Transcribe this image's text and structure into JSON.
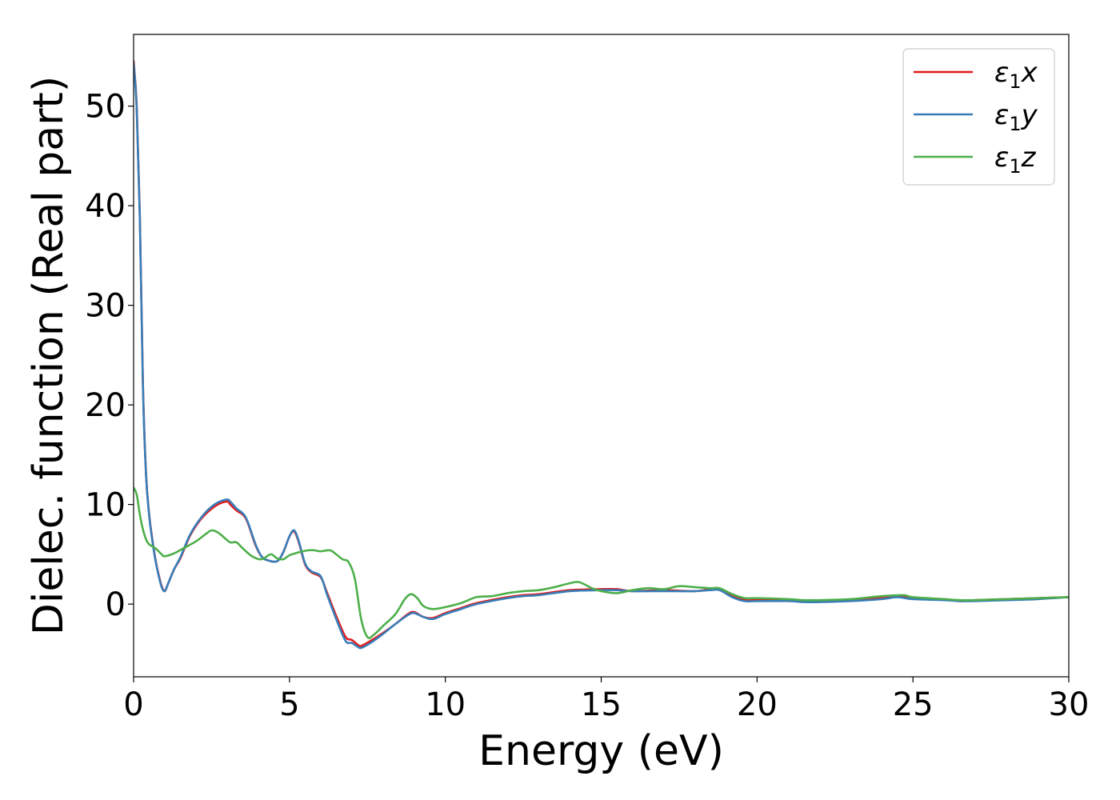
{
  "chart_data": {
    "type": "line",
    "xlabel": "Energy (eV)",
    "ylabel": "Dielec. function (Real part)",
    "xlim": [
      0,
      30
    ],
    "ylim": [
      -7.3,
      57.2
    ],
    "xticks": [
      0,
      5,
      10,
      15,
      20,
      25,
      30
    ],
    "yticks": [
      0,
      10,
      20,
      30,
      40,
      50
    ],
    "grid": false,
    "legend_position": "top-right",
    "series": [
      {
        "name": "ε1x",
        "legend_symbol": "ε",
        "legend_sub": "1",
        "legend_suffix": "x",
        "color": "#e41a1c",
        "x": [
          0,
          0.1,
          0.2,
          0.3,
          0.4,
          0.5,
          0.6,
          0.7,
          0.8,
          0.9,
          1.0,
          1.1,
          1.3,
          1.5,
          1.8,
          2.1,
          2.4,
          2.7,
          3.0,
          3.1,
          3.3,
          3.6,
          3.9,
          4.1,
          4.3,
          4.6,
          4.8,
          5.0,
          5.15,
          5.3,
          5.5,
          5.7,
          6.0,
          6.2,
          6.5,
          6.8,
          7.0,
          7.2,
          7.3,
          7.6,
          8.0,
          8.4,
          8.8,
          9.0,
          9.3,
          9.6,
          10.0,
          10.5,
          11.0,
          12.0,
          12.5,
          13.0,
          14.0,
          15.0,
          15.5,
          16.0,
          17.0,
          18.0,
          18.5,
          18.8,
          19.2,
          19.6,
          20.0,
          21.0,
          21.5,
          22.0,
          23.0,
          24.0,
          24.5,
          25.0,
          26.0,
          26.5,
          27.0,
          28.0,
          29.0,
          30.0
        ],
        "y": [
          54.5,
          50.0,
          39.0,
          22.0,
          13.0,
          9.0,
          6.5,
          4.5,
          3.0,
          1.8,
          1.3,
          2.0,
          3.5,
          4.6,
          6.8,
          8.3,
          9.3,
          10.0,
          10.3,
          10.0,
          9.4,
          8.6,
          6.0,
          4.8,
          4.4,
          4.3,
          5.2,
          6.8,
          7.3,
          6.2,
          4.0,
          3.2,
          2.7,
          1.2,
          -1.2,
          -3.3,
          -3.6,
          -4.1,
          -4.2,
          -3.7,
          -2.9,
          -2.0,
          -1.0,
          -0.8,
          -1.3,
          -1.4,
          -0.9,
          -0.4,
          0.1,
          0.7,
          0.9,
          1.0,
          1.4,
          1.5,
          1.5,
          1.3,
          1.4,
          1.3,
          1.5,
          1.4,
          0.8,
          0.4,
          0.4,
          0.4,
          0.3,
          0.3,
          0.4,
          0.6,
          0.8,
          0.6,
          0.5,
          0.3,
          0.4,
          0.5,
          0.6,
          0.7
        ]
      },
      {
        "name": "ε1y",
        "legend_symbol": "ε",
        "legend_sub": "1",
        "legend_suffix": "y",
        "color": "#377eb8",
        "x": [
          0,
          0.1,
          0.2,
          0.3,
          0.4,
          0.5,
          0.6,
          0.7,
          0.8,
          0.9,
          1.0,
          1.1,
          1.3,
          1.5,
          1.8,
          2.1,
          2.4,
          2.7,
          3.0,
          3.1,
          3.3,
          3.6,
          3.9,
          4.1,
          4.3,
          4.6,
          4.8,
          5.0,
          5.15,
          5.3,
          5.5,
          5.7,
          6.0,
          6.2,
          6.5,
          6.8,
          7.0,
          7.2,
          7.3,
          7.6,
          8.0,
          8.4,
          8.8,
          9.0,
          9.3,
          9.6,
          10.0,
          10.5,
          11.0,
          12.0,
          12.5,
          13.0,
          14.0,
          15.0,
          15.5,
          16.0,
          17.0,
          18.0,
          18.5,
          18.8,
          19.2,
          19.6,
          20.0,
          21.0,
          21.5,
          22.0,
          23.0,
          24.0,
          24.5,
          25.0,
          26.0,
          26.5,
          27.0,
          28.0,
          29.0,
          30.0
        ],
        "y": [
          54.3,
          49.7,
          38.8,
          21.8,
          12.9,
          8.9,
          6.4,
          4.4,
          2.9,
          1.7,
          1.3,
          2.0,
          3.5,
          4.7,
          6.9,
          8.4,
          9.5,
          10.2,
          10.5,
          10.3,
          9.6,
          8.7,
          6.1,
          4.8,
          4.4,
          4.3,
          5.2,
          6.8,
          7.4,
          6.3,
          4.1,
          3.3,
          2.8,
          1.0,
          -1.5,
          -3.7,
          -3.9,
          -4.3,
          -4.4,
          -3.9,
          -3.0,
          -2.0,
          -1.1,
          -0.9,
          -1.3,
          -1.5,
          -1.0,
          -0.5,
          0.0,
          0.6,
          0.8,
          0.9,
          1.3,
          1.4,
          1.4,
          1.3,
          1.3,
          1.3,
          1.4,
          1.4,
          0.7,
          0.3,
          0.3,
          0.3,
          0.2,
          0.2,
          0.3,
          0.5,
          0.7,
          0.5,
          0.4,
          0.3,
          0.3,
          0.4,
          0.5,
          0.7
        ]
      },
      {
        "name": "ε1z",
        "legend_symbol": "ε",
        "legend_sub": "1",
        "legend_suffix": "z",
        "color": "#4daf4a",
        "x": [
          0,
          0.1,
          0.2,
          0.3,
          0.4,
          0.5,
          0.7,
          0.9,
          1.0,
          1.3,
          1.6,
          2.0,
          2.3,
          2.5,
          2.7,
          2.9,
          3.1,
          3.3,
          3.5,
          3.8,
          4.1,
          4.4,
          4.6,
          4.8,
          5.0,
          5.3,
          5.6,
          5.8,
          6.0,
          6.3,
          6.5,
          6.7,
          6.9,
          7.1,
          7.3,
          7.5,
          7.7,
          8.0,
          8.4,
          8.7,
          8.9,
          9.1,
          9.3,
          9.6,
          10.0,
          10.5,
          11.0,
          11.5,
          12.0,
          12.5,
          13.0,
          13.5,
          14.0,
          14.3,
          14.7,
          15.0,
          15.5,
          16.0,
          16.5,
          17.0,
          17.5,
          18.0,
          18.5,
          18.8,
          19.2,
          19.6,
          20.0,
          21.0,
          21.5,
          22.0,
          23.0,
          24.0,
          24.7,
          25.0,
          26.0,
          26.5,
          27.0,
          28.0,
          29.0,
          30.0
        ],
        "y": [
          11.7,
          11.0,
          9.0,
          7.5,
          6.5,
          6.0,
          5.6,
          5.0,
          4.8,
          5.1,
          5.6,
          6.3,
          7.0,
          7.4,
          7.2,
          6.7,
          6.2,
          6.2,
          5.6,
          4.8,
          4.5,
          5.0,
          4.6,
          4.5,
          4.9,
          5.2,
          5.4,
          5.4,
          5.3,
          5.4,
          5.0,
          4.5,
          4.2,
          2.5,
          -1.5,
          -3.3,
          -3.1,
          -2.2,
          -1.0,
          0.5,
          1.0,
          0.6,
          -0.2,
          -0.5,
          -0.3,
          0.1,
          0.7,
          0.8,
          1.1,
          1.3,
          1.4,
          1.7,
          2.1,
          2.2,
          1.6,
          1.3,
          1.1,
          1.4,
          1.6,
          1.5,
          1.8,
          1.7,
          1.6,
          1.6,
          1.0,
          0.6,
          0.6,
          0.5,
          0.4,
          0.4,
          0.5,
          0.8,
          0.9,
          0.7,
          0.5,
          0.4,
          0.4,
          0.5,
          0.6,
          0.7
        ]
      }
    ]
  }
}
